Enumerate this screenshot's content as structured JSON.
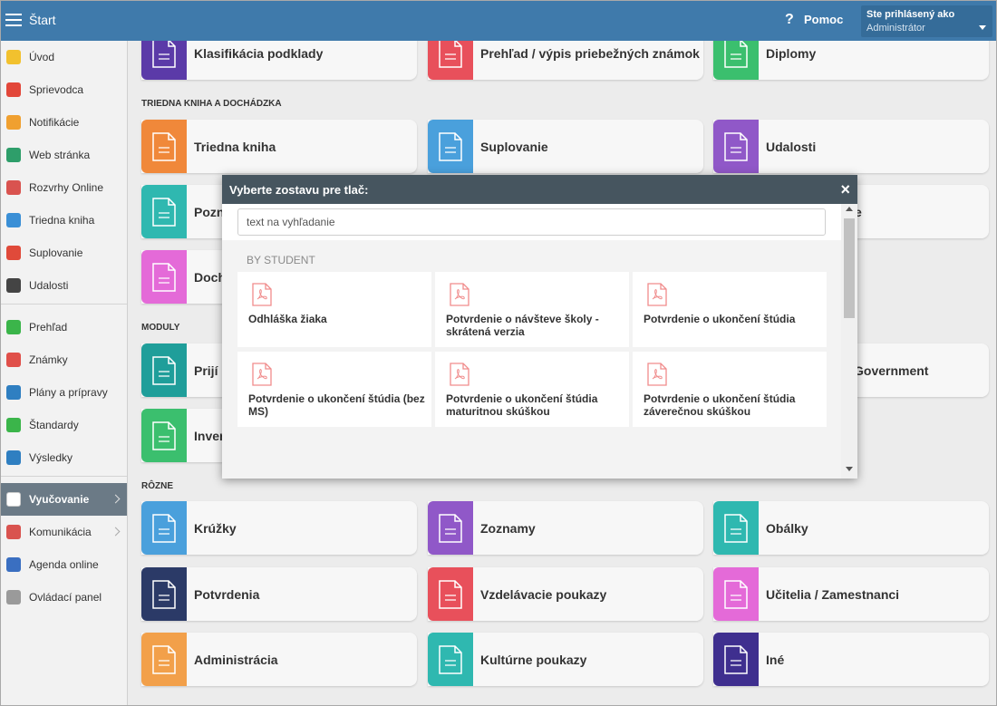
{
  "header": {
    "title": "Štart",
    "help_icon": "?",
    "help": "Pomoc",
    "user_label": "Ste prihlásený ako",
    "user_role": "Administrátor"
  },
  "sidebar": {
    "groups": [
      [
        {
          "label": "Úvod",
          "color": "#f2c12e"
        },
        {
          "label": "Sprievodca",
          "color": "#e2473a"
        },
        {
          "label": "Notifikácie",
          "color": "#f0a030"
        },
        {
          "label": "Web stránka",
          "color": "#2e9e6a"
        },
        {
          "label": "Rozvrhy Online",
          "color": "#d9534f"
        },
        {
          "label": "Triedna kniha",
          "color": "#3a8fd6"
        },
        {
          "label": "Suplovanie",
          "color": "#e04a3a"
        },
        {
          "label": "Udalosti",
          "color": "#444444"
        }
      ],
      [
        {
          "label": "Prehľad",
          "color": "#3bb54a"
        },
        {
          "label": "Známky",
          "color": "#e0504a"
        },
        {
          "label": "Plány a prípravy",
          "color": "#2f7fc1"
        },
        {
          "label": "Štandardy",
          "color": "#3bb54a"
        },
        {
          "label": "Výsledky",
          "color": "#2f7fc1"
        }
      ],
      [
        {
          "label": "Vyučovanie",
          "color": "#ffffff",
          "active": true
        },
        {
          "label": "Komunikácia",
          "color": "#d9534f"
        },
        {
          "label": "Agenda online",
          "color": "#3a6fc1"
        },
        {
          "label": "Ovládací panel",
          "color": "#9a9a9a"
        }
      ]
    ]
  },
  "sections": [
    {
      "cards": [
        {
          "label": "Klasifikácia podklady",
          "color": "#5b3aa8"
        },
        {
          "label": "Prehľad / výpis priebežných známok",
          "color": "#e8505b"
        },
        {
          "label": "Diplomy",
          "color": "#3bbf6e"
        }
      ]
    },
    {
      "title": "TRIEDNA KNIHA A DOCHÁDZKA",
      "cards": [
        {
          "label": "Triedna kniha",
          "color": "#f0883a"
        },
        {
          "label": "Suplovanie",
          "color": "#4aa0dc"
        },
        {
          "label": "Udalosti",
          "color": "#9058c8"
        },
        {
          "label": "Pozn",
          "color": "#2fb8b0"
        },
        {
          "label": "e"
        },
        {
          "label": "Doch",
          "color": "#e46ad8"
        }
      ]
    },
    {
      "title": "MODULY",
      "cards": [
        {
          "label": "Prijí",
          "color": "#1f9e9a"
        },
        {
          "label": "Government"
        },
        {
          "label": "Inver",
          "color": "#3bbf6e"
        }
      ]
    },
    {
      "title": "RÔZNE",
      "cards": [
        {
          "label": "Krúžky",
          "color": "#4aa0dc"
        },
        {
          "label": "Zoznamy",
          "color": "#9058c8"
        },
        {
          "label": "Obálky",
          "color": "#2fb8b0"
        },
        {
          "label": "Potvrdenia",
          "color": "#2b3a67"
        },
        {
          "label": "Vzdelávacie poukazy",
          "color": "#e8505b"
        },
        {
          "label": "Učitelia / Zamestnanci",
          "color": "#e46ad8"
        },
        {
          "label": "Administrácia",
          "color": "#f2a04a"
        },
        {
          "label": "Kultúrne poukazy",
          "color": "#2fb8b0"
        },
        {
          "label": "Iné",
          "color": "#3f2f8f"
        }
      ]
    }
  ],
  "modal": {
    "title": "Vyberte zostavu pre tlač:",
    "close": "×",
    "search_placeholder": "text na vyhľadanie",
    "group": "BY STUDENT",
    "items": [
      "Odhláška žiaka",
      "Potvrdenie o návšteve školy - skrátená verzia",
      "Potvrdenie o ukončení štúdia",
      "Potvrdenie o ukončení štúdia (bez MS)",
      "Potvrdenie o ukončení štúdia maturitnou skúškou",
      "Potvrdenie o ukončení štúdia záverečnou skúškou"
    ]
  }
}
